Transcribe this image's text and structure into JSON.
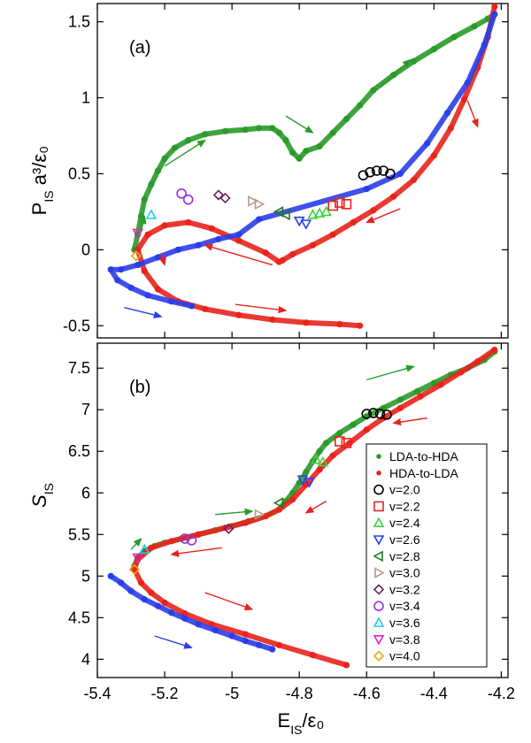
{
  "chart_data": [
    {
      "type": "scatter",
      "panel_label": "(a)",
      "ylabel_main": "P",
      "ylabel_sub": "IS",
      "ylabel_rest": " a³/ε₀",
      "xlim": [
        -5.4,
        -4.18
      ],
      "ylim": [
        -0.58,
        1.62
      ],
      "yticks": [
        -0.5,
        0,
        0.5,
        1,
        1.5
      ],
      "ytick_labels": [
        "-0.5",
        "0",
        "0.5",
        "1",
        "1.5"
      ],
      "series": [
        {
          "name": "LDA-to-HDA",
          "color": "#2a9a2a",
          "marker": "dot",
          "x": [
            -5.29,
            -5.28,
            -5.27,
            -5.26,
            -5.24,
            -5.22,
            -5.2,
            -5.17,
            -5.13,
            -5.08,
            -5.02,
            -4.96,
            -4.92,
            -4.88,
            -4.86,
            -4.84,
            -4.82,
            -4.8,
            -4.78,
            -4.74,
            -4.7,
            -4.66,
            -4.62,
            -4.58,
            -4.52,
            -4.46,
            -4.4,
            -4.34,
            -4.28,
            -4.24,
            -4.22
          ],
          "y": [
            0.0,
            0.1,
            0.22,
            0.33,
            0.43,
            0.52,
            0.6,
            0.67,
            0.72,
            0.76,
            0.78,
            0.79,
            0.8,
            0.8,
            0.77,
            0.72,
            0.64,
            0.6,
            0.65,
            0.68,
            0.77,
            0.86,
            0.95,
            1.05,
            1.15,
            1.24,
            1.32,
            1.4,
            1.47,
            1.52,
            1.55
          ]
        },
        {
          "name": "HDA-to-LDA",
          "color": "#e8231c",
          "marker": "dot",
          "x": [
            -4.22,
            -4.24,
            -4.27,
            -4.31,
            -4.35,
            -4.4,
            -4.46,
            -4.52,
            -4.58,
            -4.64,
            -4.7,
            -4.76,
            -4.82,
            -4.85,
            -4.86,
            -4.9,
            -4.98,
            -5.06,
            -5.13,
            -5.2,
            -5.25,
            -5.28,
            -5.26,
            -5.22,
            -5.16,
            -5.08,
            -4.98,
            -4.88,
            -4.78,
            -4.68,
            -4.62
          ],
          "y": [
            1.6,
            1.4,
            1.2,
            0.99,
            0.8,
            0.62,
            0.46,
            0.35,
            0.26,
            0.18,
            0.1,
            0.03,
            -0.03,
            -0.07,
            -0.08,
            -0.02,
            0.06,
            0.14,
            0.18,
            0.16,
            0.1,
            0.0,
            -0.14,
            -0.26,
            -0.34,
            -0.39,
            -0.43,
            -0.46,
            -0.48,
            -0.49,
            -0.5
          ]
        },
        {
          "name": "blue trajectory",
          "color": "#2a3ee8",
          "marker": "dot",
          "x": [
            -5.12,
            -5.18,
            -5.25,
            -5.3,
            -5.34,
            -5.36,
            -5.33,
            -5.28,
            -5.22,
            -5.16,
            -5.1,
            -5.04,
            -4.98,
            -4.92,
            -4.6,
            -4.5,
            -4.42,
            -4.36,
            -4.3,
            -4.25,
            -4.22
          ],
          "y": [
            -0.37,
            -0.34,
            -0.3,
            -0.25,
            -0.2,
            -0.13,
            -0.13,
            -0.1,
            -0.05,
            0.0,
            0.03,
            0.07,
            0.1,
            0.2,
            0.4,
            0.5,
            0.7,
            0.9,
            1.1,
            1.35,
            1.55
          ]
        }
      ],
      "markers": [
        {
          "v": "v=2.0",
          "x": [
            -4.61,
            -4.59,
            -4.57,
            -4.55,
            -4.53
          ],
          "y": [
            0.49,
            0.51,
            0.52,
            0.52,
            0.5
          ]
        },
        {
          "v": "v=2.2",
          "x": [
            -4.7,
            -4.68,
            -4.66
          ],
          "y": [
            0.29,
            0.31,
            0.3
          ]
        },
        {
          "v": "v=2.4",
          "x": [
            -4.76,
            -4.74,
            -4.72
          ],
          "y": [
            0.23,
            0.24,
            0.25
          ]
        },
        {
          "v": "v=2.6",
          "x": [
            -4.8,
            -4.78
          ],
          "y": [
            0.19,
            0.17
          ]
        },
        {
          "v": "v=2.8",
          "x": [
            -4.86,
            -4.84
          ],
          "y": [
            0.25,
            0.23
          ]
        },
        {
          "v": "v=3.0",
          "x": [
            -4.94,
            -4.92
          ],
          "y": [
            0.32,
            0.3
          ]
        },
        {
          "v": "v=3.2",
          "x": [
            -5.04,
            -5.02
          ],
          "y": [
            0.36,
            0.34
          ]
        },
        {
          "v": "v=3.4",
          "x": [
            -5.15,
            -5.13
          ],
          "y": [
            0.37,
            0.33
          ]
        },
        {
          "v": "v=3.6",
          "x": [
            -5.24
          ],
          "y": [
            0.23
          ]
        },
        {
          "v": "v=3.8",
          "x": [
            -5.28
          ],
          "y": [
            0.11
          ]
        },
        {
          "v": "v=4.0",
          "x": [
            -5.285
          ],
          "y": [
            -0.04
          ]
        }
      ],
      "arrows": [
        {
          "color": "#2a9a2a",
          "from": [
            -5.27,
            0.12
          ],
          "to": [
            -5.26,
            0.22
          ]
        },
        {
          "color": "#2a9a2a",
          "from": [
            -5.2,
            0.55
          ],
          "to": [
            -5.08,
            0.72
          ]
        },
        {
          "color": "#2a9a2a",
          "from": [
            -4.84,
            0.88
          ],
          "to": [
            -4.76,
            0.77
          ]
        },
        {
          "color": "#2a9a2a",
          "from": [
            -4.56,
            1.07
          ],
          "to": [
            -4.47,
            1.25
          ]
        },
        {
          "color": "#e8231c",
          "from": [
            -4.3,
            0.98
          ],
          "to": [
            -4.27,
            0.81
          ]
        },
        {
          "color": "#e8231c",
          "from": [
            -4.5,
            0.27
          ],
          "to": [
            -4.6,
            0.18
          ]
        },
        {
          "color": "#e8231c",
          "from": [
            -4.88,
            -0.1
          ],
          "to": [
            -5.08,
            0.03
          ]
        },
        {
          "color": "#e8231c",
          "from": [
            -5.21,
            -0.02
          ],
          "to": [
            -5.2,
            -0.1
          ]
        },
        {
          "color": "#e8231c",
          "from": [
            -4.99,
            -0.36
          ],
          "to": [
            -4.84,
            -0.4
          ]
        },
        {
          "color": "#2a3ee8",
          "from": [
            -5.32,
            -0.38
          ],
          "to": [
            -5.21,
            -0.44
          ]
        }
      ]
    },
    {
      "type": "scatter",
      "panel_label": "(b)",
      "ylabel_main": "S",
      "ylabel_sub": "IS",
      "xlabel_main": "E",
      "xlabel_sub": "IS",
      "xlabel_rest": "/ε₀",
      "xlim": [
        -5.4,
        -4.18
      ],
      "ylim": [
        3.78,
        7.8
      ],
      "xticks": [
        -5.4,
        -5.2,
        -5.0,
        -4.8,
        -4.6,
        -4.4,
        -4.2
      ],
      "xtick_labels": [
        "-5.4",
        "-5.2",
        "-5",
        "-4.8",
        "-4.6",
        "-4.4",
        "-4.2"
      ],
      "yticks": [
        4,
        4.5,
        5,
        5.5,
        6,
        6.5,
        7,
        7.5
      ],
      "ytick_labels": [
        "4",
        "4.5",
        "5",
        "5.5",
        "6",
        "6.5",
        "7",
        "7.5"
      ],
      "series": [
        {
          "name": "LDA-to-HDA",
          "color": "#2a9a2a",
          "marker": "dot",
          "x": [
            -5.29,
            -5.28,
            -5.26,
            -5.23,
            -5.2,
            -5.15,
            -5.1,
            -5.05,
            -5.0,
            -4.95,
            -4.9,
            -4.86,
            -4.84,
            -4.82,
            -4.8,
            -4.78,
            -4.76,
            -4.74,
            -4.72,
            -4.68,
            -4.64,
            -4.6,
            -4.55,
            -4.5,
            -4.45,
            -4.4,
            -4.35,
            -4.3,
            -4.25,
            -4.22
          ],
          "y": [
            5.12,
            5.22,
            5.3,
            5.36,
            5.4,
            5.45,
            5.5,
            5.55,
            5.6,
            5.66,
            5.72,
            5.8,
            5.9,
            6.0,
            6.12,
            6.25,
            6.38,
            6.5,
            6.6,
            6.72,
            6.82,
            6.92,
            7.02,
            7.12,
            7.22,
            7.32,
            7.42,
            7.5,
            7.6,
            7.7
          ]
        },
        {
          "name": "HDA-to-LDA",
          "color": "#e8231c",
          "marker": "dot",
          "x": [
            -4.22,
            -4.27,
            -4.32,
            -4.38,
            -4.44,
            -4.5,
            -4.55,
            -4.6,
            -4.65,
            -4.7,
            -4.74,
            -4.78,
            -4.82,
            -4.86,
            -4.9,
            -4.96,
            -5.02,
            -5.1,
            -5.18,
            -5.24,
            -5.28,
            -5.29,
            -5.27,
            -5.24,
            -5.2,
            -5.14,
            -5.06,
            -4.96,
            -4.86,
            -4.76,
            -4.66
          ],
          "y": [
            7.72,
            7.58,
            7.45,
            7.3,
            7.16,
            7.02,
            6.9,
            6.76,
            6.6,
            6.45,
            6.28,
            6.1,
            5.92,
            5.8,
            5.72,
            5.64,
            5.58,
            5.5,
            5.42,
            5.34,
            5.2,
            5.08,
            4.92,
            4.8,
            4.68,
            4.55,
            4.42,
            4.3,
            4.17,
            4.05,
            3.93
          ]
        },
        {
          "name": "blue trajectory",
          "color": "#2a3ee8",
          "marker": "dot",
          "x": [
            -5.36,
            -5.33,
            -5.3,
            -5.26,
            -5.22,
            -5.18,
            -5.14,
            -5.1,
            -5.05,
            -5.0,
            -4.96,
            -4.92,
            -4.88
          ],
          "y": [
            5.0,
            4.92,
            4.82,
            4.72,
            4.64,
            4.56,
            4.49,
            4.42,
            4.35,
            4.28,
            4.22,
            4.17,
            4.12
          ]
        }
      ],
      "markers": [
        {
          "v": "v=2.0",
          "x": [
            -4.6,
            -4.58,
            -4.56,
            -4.54
          ],
          "y": [
            6.95,
            6.96,
            6.95,
            6.94
          ]
        },
        {
          "v": "v=2.2",
          "x": [
            -4.68,
            -4.66
          ],
          "y": [
            6.62,
            6.6
          ]
        },
        {
          "v": "v=2.4",
          "x": [
            -4.75,
            -4.73
          ],
          "y": [
            6.4,
            6.37
          ]
        },
        {
          "v": "v=2.6",
          "x": [
            -4.79,
            -4.77
          ],
          "y": [
            6.16,
            6.13
          ]
        },
        {
          "v": "v=2.8",
          "x": [
            -4.86
          ],
          "y": [
            5.88
          ]
        },
        {
          "v": "v=3.0",
          "x": [
            -4.92
          ],
          "y": [
            5.74
          ]
        },
        {
          "v": "v=3.2",
          "x": [
            -5.01
          ],
          "y": [
            5.57
          ]
        },
        {
          "v": "v=3.4",
          "x": [
            -5.14,
            -5.12
          ],
          "y": [
            5.45,
            5.43
          ]
        },
        {
          "v": "v=3.6",
          "x": [
            -5.26
          ],
          "y": [
            5.32
          ]
        },
        {
          "v": "v=3.8",
          "x": [
            -5.28
          ],
          "y": [
            5.22
          ]
        },
        {
          "v": "v=4.0",
          "x": [
            -5.29
          ],
          "y": [
            5.08
          ]
        }
      ],
      "arrows": [
        {
          "color": "#2a9a2a",
          "from": [
            -5.3,
            5.32
          ],
          "to": [
            -5.27,
            5.45
          ]
        },
        {
          "color": "#2a9a2a",
          "from": [
            -5.05,
            5.74
          ],
          "to": [
            -4.94,
            5.78
          ]
        },
        {
          "color": "#2a9a2a",
          "from": [
            -4.6,
            7.36
          ],
          "to": [
            -4.46,
            7.52
          ]
        },
        {
          "color": "#e8231c",
          "from": [
            -4.42,
            6.9
          ],
          "to": [
            -4.52,
            6.84
          ]
        },
        {
          "color": "#e8231c",
          "from": [
            -4.72,
            5.9
          ],
          "to": [
            -4.78,
            5.76
          ]
        },
        {
          "color": "#e8231c",
          "from": [
            -5.03,
            5.34
          ],
          "to": [
            -5.18,
            5.26
          ]
        },
        {
          "color": "#e8231c",
          "from": [
            -5.08,
            4.8
          ],
          "to": [
            -4.94,
            4.6
          ]
        },
        {
          "color": "#2a3ee8",
          "from": [
            -5.23,
            4.28
          ],
          "to": [
            -5.12,
            4.14
          ]
        }
      ],
      "legend": {
        "position": "right-middle",
        "entries": [
          {
            "label": "LDA-to-HDA",
            "color": "#2a9a2a",
            "marker": "dot"
          },
          {
            "label": "HDA-to-LDA",
            "color": "#e8231c",
            "marker": "dot"
          },
          {
            "label": "v=2.0",
            "color": "#000000",
            "marker": "circle"
          },
          {
            "label": "v=2.2",
            "color": "#e8231c",
            "marker": "square"
          },
          {
            "label": "v=2.4",
            "color": "#3fd23f",
            "marker": "triangle-up"
          },
          {
            "label": "v=2.6",
            "color": "#2a3ee8",
            "marker": "triangle-down"
          },
          {
            "label": "v=2.8",
            "color": "#1f7a1f",
            "marker": "triangle-left"
          },
          {
            "label": "v=3.0",
            "color": "#b89a8a",
            "marker": "triangle-right"
          },
          {
            "label": "v=3.2",
            "color": "#6a1f5e",
            "marker": "diamond"
          },
          {
            "label": "v=3.4",
            "color": "#9b30d9",
            "marker": "circle"
          },
          {
            "label": "v=3.6",
            "color": "#1fd0e8",
            "marker": "triangle-up"
          },
          {
            "label": "v=3.8",
            "color": "#e81fd0",
            "marker": "triangle-down"
          },
          {
            "label": "v=4.0",
            "color": "#f0a010",
            "marker": "diamond"
          }
        ]
      }
    }
  ]
}
